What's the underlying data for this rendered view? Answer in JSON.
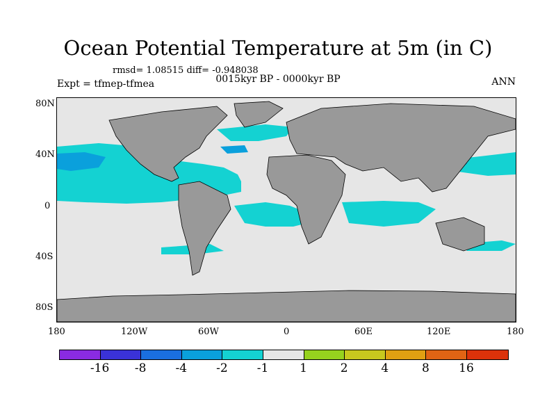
{
  "header": {
    "title": "Ocean Potential Temperature at 5m (in C)",
    "stats": "rmsd= 1.08515 diff= -0.948038",
    "subtitle": "0015kyr BP - 0000kyr BP",
    "experiment": "Expt = tfmep-tfmea",
    "season": "ANN"
  },
  "map": {
    "projection": "cylindrical-equidistant",
    "lon_range": [
      -180,
      180
    ],
    "lat_range": [
      -90,
      90
    ],
    "land_color": "#999999",
    "near_zero_color": "#e6e6e6",
    "lat_ticks": [
      {
        "value": 80,
        "label": "80N"
      },
      {
        "value": 40,
        "label": "40N"
      },
      {
        "value": 0,
        "label": "0"
      },
      {
        "value": -40,
        "label": "40S"
      },
      {
        "value": -80,
        "label": "80S"
      }
    ],
    "lon_ticks": [
      {
        "value": -180,
        "label": "180"
      },
      {
        "value": -120,
        "label": "120W"
      },
      {
        "value": -60,
        "label": "60W"
      },
      {
        "value": 0,
        "label": "0"
      },
      {
        "value": 60,
        "label": "60E"
      },
      {
        "value": 120,
        "label": "120E"
      },
      {
        "value": 180,
        "label": "180"
      }
    ]
  },
  "colorbar": {
    "colors": [
      "#8a2be2",
      "#3a32d8",
      "#1a6fe0",
      "#0aa0dc",
      "#14d2d2",
      "#e6e6e6",
      "#96d21e",
      "#c8c81e",
      "#e0a012",
      "#e06414",
      "#dc320a"
    ],
    "labels": [
      "-16",
      "-8",
      "-4",
      "-2",
      "-1",
      "1",
      "2",
      "4",
      "8",
      "16"
    ]
  }
}
